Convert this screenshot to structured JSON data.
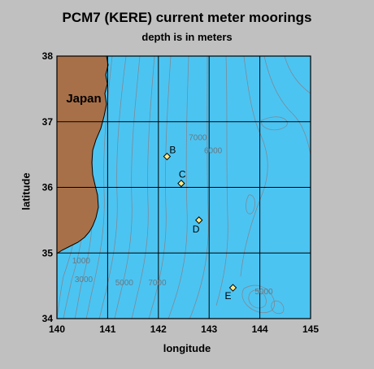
{
  "title": "PCM7 (KERE) current meter moorings",
  "subtitle": "depth is in meters",
  "map": {
    "xlabel": "longitude",
    "ylabel": "latitude",
    "xlim": [
      140,
      145
    ],
    "ylim": [
      34,
      38
    ],
    "x_ticks": [
      "140",
      "141",
      "142",
      "143",
      "144",
      "145"
    ],
    "y_ticks": [
      "34",
      "35",
      "36",
      "37",
      "38"
    ],
    "grid": true,
    "colors": {
      "ocean": "#4cc4f2",
      "land": "#a87048",
      "contour": "#7d8a96",
      "mooring": "#ffe98a",
      "frame": "#000000",
      "background": "#c0c0c0"
    },
    "land_label": "Japan",
    "moorings": [
      {
        "label": "B",
        "lon": 142.17,
        "lat": 36.47
      },
      {
        "label": "C",
        "lon": 142.45,
        "lat": 36.06
      },
      {
        "label": "D",
        "lon": 142.8,
        "lat": 35.5
      },
      {
        "label": "E",
        "lon": 143.47,
        "lat": 34.47
      }
    ],
    "depth_labels": [
      {
        "text": "1000",
        "lon": 140.3,
        "lat": 34.84
      },
      {
        "text": "3000",
        "lon": 140.35,
        "lat": 34.56
      },
      {
        "text": "5000",
        "lon": 141.15,
        "lat": 34.51
      },
      {
        "text": "7000",
        "lon": 141.8,
        "lat": 34.51
      },
      {
        "text": "7000",
        "lon": 142.6,
        "lat": 36.72
      },
      {
        "text": "6000",
        "lon": 142.9,
        "lat": 36.52
      },
      {
        "text": "5000",
        "lon": 143.9,
        "lat": 34.37
      }
    ]
  }
}
